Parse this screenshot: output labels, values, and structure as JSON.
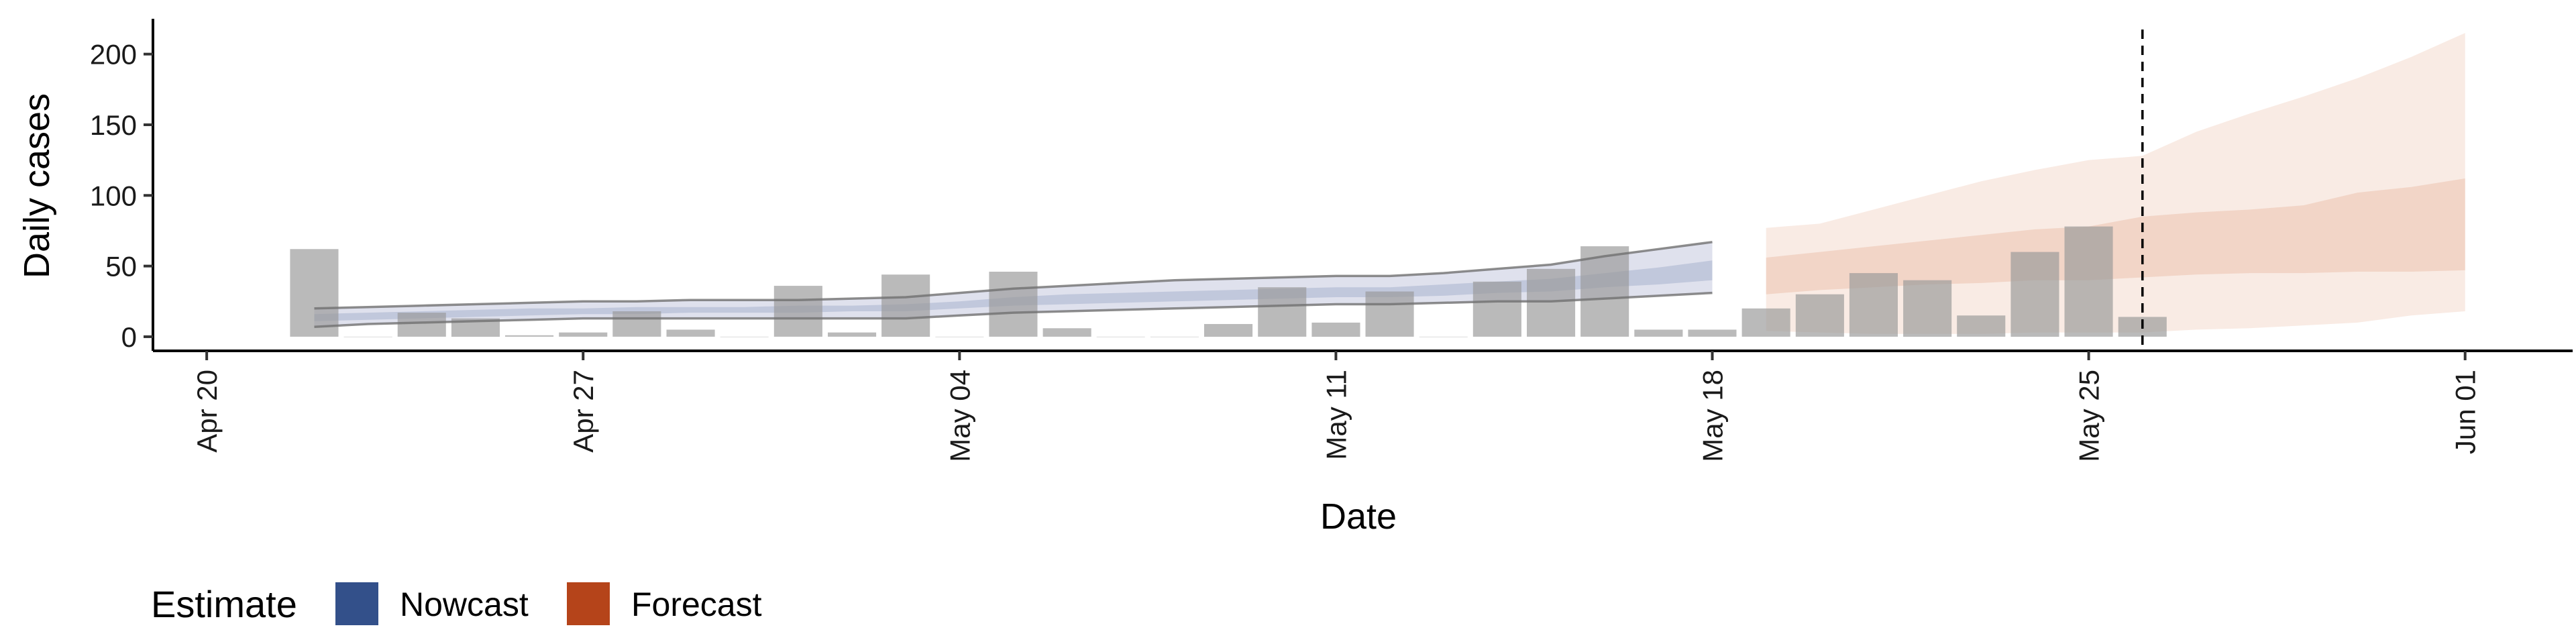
{
  "chart_data": {
    "type": "bar",
    "xlabel": "Date",
    "ylabel": "Daily cases",
    "ylim": [
      -10,
      225
    ],
    "xlim": [
      "2020-04-19",
      "2020-06-03"
    ],
    "y_ticks": [
      0,
      50,
      100,
      150,
      200
    ],
    "x_ticks": [
      {
        "date": "2020-04-20",
        "label": "Apr 20"
      },
      {
        "date": "2020-04-27",
        "label": "Apr 27"
      },
      {
        "date": "2020-05-04",
        "label": "May 04"
      },
      {
        "date": "2020-05-11",
        "label": "May 11"
      },
      {
        "date": "2020-05-18",
        "label": "May 18"
      },
      {
        "date": "2020-05-25",
        "label": "May 25"
      },
      {
        "date": "2020-06-01",
        "label": "Jun 01"
      }
    ],
    "grid": false,
    "vline_date": "2020-05-26",
    "observed_cases": {
      "dates": [
        "2020-04-22",
        "2020-04-23",
        "2020-04-24",
        "2020-04-25",
        "2020-04-26",
        "2020-04-27",
        "2020-04-28",
        "2020-04-29",
        "2020-04-30",
        "2020-05-01",
        "2020-05-02",
        "2020-05-03",
        "2020-05-04",
        "2020-05-05",
        "2020-05-06",
        "2020-05-07",
        "2020-05-08",
        "2020-05-09",
        "2020-05-10",
        "2020-05-11",
        "2020-05-12",
        "2020-05-13",
        "2020-05-14",
        "2020-05-15",
        "2020-05-16",
        "2020-05-17",
        "2020-05-18",
        "2020-05-19",
        "2020-05-20",
        "2020-05-21",
        "2020-05-22",
        "2020-05-23",
        "2020-05-24",
        "2020-05-25",
        "2020-05-26"
      ],
      "values": [
        62,
        0,
        17,
        13,
        1,
        3,
        18,
        5,
        0,
        36,
        3,
        44,
        0,
        46,
        6,
        0,
        0,
        9,
        35,
        10,
        32,
        0,
        39,
        48,
        64,
        5,
        5,
        20,
        30,
        45,
        40,
        15,
        60,
        78,
        14
      ]
    },
    "series": [
      {
        "name": "Nowcast",
        "color": "#33508a",
        "dates": [
          "2020-04-22",
          "2020-04-23",
          "2020-04-24",
          "2020-04-25",
          "2020-04-26",
          "2020-04-27",
          "2020-04-28",
          "2020-04-29",
          "2020-04-30",
          "2020-05-01",
          "2020-05-02",
          "2020-05-03",
          "2020-05-04",
          "2020-05-05",
          "2020-05-06",
          "2020-05-07",
          "2020-05-08",
          "2020-05-09",
          "2020-05-10",
          "2020-05-11",
          "2020-05-12",
          "2020-05-13",
          "2020-05-14",
          "2020-05-15",
          "2020-05-16",
          "2020-05-17",
          "2020-05-18"
        ],
        "lower90": [
          7,
          9,
          10,
          11,
          12,
          13,
          13,
          13,
          13,
          13,
          13,
          13,
          15,
          17,
          18,
          19,
          20,
          21,
          22,
          23,
          23,
          24,
          25,
          25,
          27,
          29,
          31
        ],
        "upper90": [
          20,
          21,
          22,
          23,
          24,
          25,
          25,
          26,
          26,
          26,
          27,
          28,
          31,
          34,
          36,
          38,
          40,
          41,
          42,
          43,
          43,
          45,
          48,
          51,
          57,
          62,
          67
        ],
        "lower50": [
          11,
          12,
          13,
          14,
          15,
          16,
          16,
          17,
          17,
          17,
          18,
          18,
          20,
          22,
          23,
          24,
          25,
          26,
          27,
          28,
          28,
          29,
          31,
          32,
          35,
          37,
          40
        ],
        "upper50": [
          16,
          17,
          18,
          19,
          20,
          20,
          21,
          21,
          21,
          22,
          22,
          23,
          25,
          28,
          30,
          31,
          32,
          33,
          34,
          35,
          35,
          37,
          39,
          41,
          45,
          49,
          54
        ]
      },
      {
        "name": "Forecast",
        "color": "#b5441a",
        "dates": [
          "2020-05-19",
          "2020-05-20",
          "2020-05-21",
          "2020-05-22",
          "2020-05-23",
          "2020-05-24",
          "2020-05-25",
          "2020-05-26",
          "2020-05-27",
          "2020-05-28",
          "2020-05-29",
          "2020-05-30",
          "2020-05-31",
          "2020-06-01"
        ],
        "lower90": [
          4,
          3,
          2,
          2,
          2,
          3,
          3,
          3,
          5,
          6,
          8,
          10,
          15,
          18
        ],
        "upper90": [
          77,
          80,
          90,
          100,
          110,
          118,
          125,
          128,
          145,
          158,
          170,
          183,
          198,
          215
        ],
        "lower50": [
          30,
          33,
          35,
          37,
          38,
          40,
          40,
          42,
          44,
          45,
          45,
          46,
          46,
          47
        ],
        "upper50": [
          56,
          60,
          64,
          68,
          72,
          76,
          78,
          85,
          88,
          90,
          93,
          102,
          106,
          112
        ]
      }
    ],
    "legend": {
      "title": "Estimate",
      "position": "bottom-left",
      "entries": [
        {
          "label": "Nowcast",
          "color": "#33508a"
        },
        {
          "label": "Forecast",
          "color": "#b5441a"
        }
      ]
    },
    "colors": {
      "bars": "#999999",
      "nowcast_band_90": "#d9dcea",
      "nowcast_band_50": "#b7bfd6",
      "forecast_band_90": "#f8e7df",
      "forecast_band_50": "#efcdbd",
      "nowcast_outline": "#707070",
      "vline": "#000000"
    }
  }
}
